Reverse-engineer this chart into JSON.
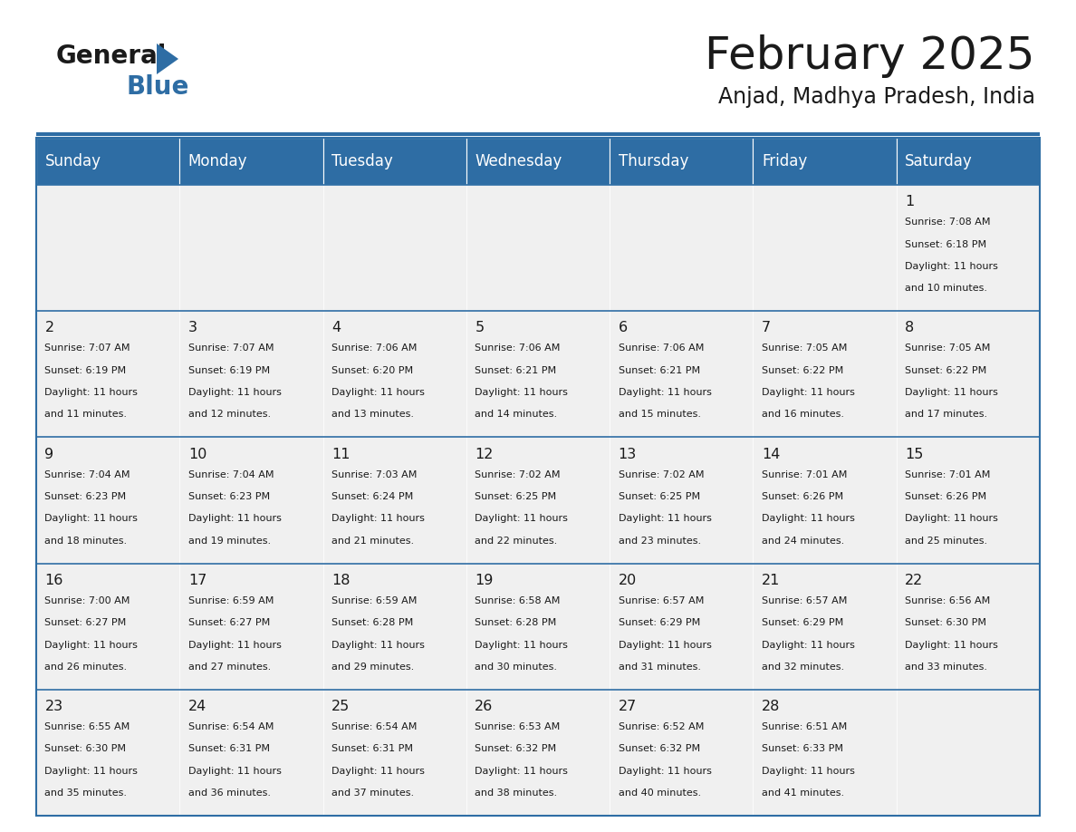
{
  "title": "February 2025",
  "subtitle": "Anjad, Madhya Pradesh, India",
  "header_bg": "#2E6DA4",
  "header_text": "#FFFFFF",
  "cell_bg_light": "#F0F0F0",
  "line_color": "#2E6DA4",
  "days_of_week": [
    "Sunday",
    "Monday",
    "Tuesday",
    "Wednesday",
    "Thursday",
    "Friday",
    "Saturday"
  ],
  "general_text": "#1a1a1a",
  "logo_blue_color": "#2E6DA4",
  "calendar_data": [
    [
      null,
      null,
      null,
      null,
      null,
      null,
      1
    ],
    [
      2,
      3,
      4,
      5,
      6,
      7,
      8
    ],
    [
      9,
      10,
      11,
      12,
      13,
      14,
      15
    ],
    [
      16,
      17,
      18,
      19,
      20,
      21,
      22
    ],
    [
      23,
      24,
      25,
      26,
      27,
      28,
      null
    ]
  ],
  "sunrise_data": {
    "1": {
      "sunrise": "7:08 AM",
      "sunset": "6:18 PM",
      "daylight": "11 hours and 10 minutes"
    },
    "2": {
      "sunrise": "7:07 AM",
      "sunset": "6:19 PM",
      "daylight": "11 hours and 11 minutes"
    },
    "3": {
      "sunrise": "7:07 AM",
      "sunset": "6:19 PM",
      "daylight": "11 hours and 12 minutes"
    },
    "4": {
      "sunrise": "7:06 AM",
      "sunset": "6:20 PM",
      "daylight": "11 hours and 13 minutes"
    },
    "5": {
      "sunrise": "7:06 AM",
      "sunset": "6:21 PM",
      "daylight": "11 hours and 14 minutes"
    },
    "6": {
      "sunrise": "7:06 AM",
      "sunset": "6:21 PM",
      "daylight": "11 hours and 15 minutes"
    },
    "7": {
      "sunrise": "7:05 AM",
      "sunset": "6:22 PM",
      "daylight": "11 hours and 16 minutes"
    },
    "8": {
      "sunrise": "7:05 AM",
      "sunset": "6:22 PM",
      "daylight": "11 hours and 17 minutes"
    },
    "9": {
      "sunrise": "7:04 AM",
      "sunset": "6:23 PM",
      "daylight": "11 hours and 18 minutes"
    },
    "10": {
      "sunrise": "7:04 AM",
      "sunset": "6:23 PM",
      "daylight": "11 hours and 19 minutes"
    },
    "11": {
      "sunrise": "7:03 AM",
      "sunset": "6:24 PM",
      "daylight": "11 hours and 21 minutes"
    },
    "12": {
      "sunrise": "7:02 AM",
      "sunset": "6:25 PM",
      "daylight": "11 hours and 22 minutes"
    },
    "13": {
      "sunrise": "7:02 AM",
      "sunset": "6:25 PM",
      "daylight": "11 hours and 23 minutes"
    },
    "14": {
      "sunrise": "7:01 AM",
      "sunset": "6:26 PM",
      "daylight": "11 hours and 24 minutes"
    },
    "15": {
      "sunrise": "7:01 AM",
      "sunset": "6:26 PM",
      "daylight": "11 hours and 25 minutes"
    },
    "16": {
      "sunrise": "7:00 AM",
      "sunset": "6:27 PM",
      "daylight": "11 hours and 26 minutes"
    },
    "17": {
      "sunrise": "6:59 AM",
      "sunset": "6:27 PM",
      "daylight": "11 hours and 27 minutes"
    },
    "18": {
      "sunrise": "6:59 AM",
      "sunset": "6:28 PM",
      "daylight": "11 hours and 29 minutes"
    },
    "19": {
      "sunrise": "6:58 AM",
      "sunset": "6:28 PM",
      "daylight": "11 hours and 30 minutes"
    },
    "20": {
      "sunrise": "6:57 AM",
      "sunset": "6:29 PM",
      "daylight": "11 hours and 31 minutes"
    },
    "21": {
      "sunrise": "6:57 AM",
      "sunset": "6:29 PM",
      "daylight": "11 hours and 32 minutes"
    },
    "22": {
      "sunrise": "6:56 AM",
      "sunset": "6:30 PM",
      "daylight": "11 hours and 33 minutes"
    },
    "23": {
      "sunrise": "6:55 AM",
      "sunset": "6:30 PM",
      "daylight": "11 hours and 35 minutes"
    },
    "24": {
      "sunrise": "6:54 AM",
      "sunset": "6:31 PM",
      "daylight": "11 hours and 36 minutes"
    },
    "25": {
      "sunrise": "6:54 AM",
      "sunset": "6:31 PM",
      "daylight": "11 hours and 37 minutes"
    },
    "26": {
      "sunrise": "6:53 AM",
      "sunset": "6:32 PM",
      "daylight": "11 hours and 38 minutes"
    },
    "27": {
      "sunrise": "6:52 AM",
      "sunset": "6:32 PM",
      "daylight": "11 hours and 40 minutes"
    },
    "28": {
      "sunrise": "6:51 AM",
      "sunset": "6:33 PM",
      "daylight": "11 hours and 41 minutes"
    }
  }
}
